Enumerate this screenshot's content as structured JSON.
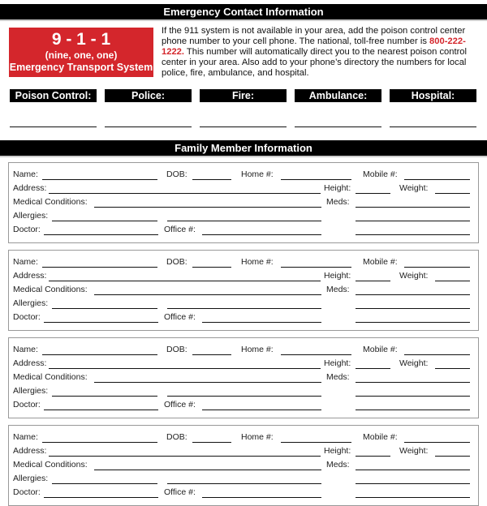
{
  "emergency_header": "Emergency Contact Information",
  "red_box": {
    "number": "9 - 1 - 1",
    "spelled": "(nine, one, one)",
    "system": "Emergency Transport System",
    "color": "#d4262c"
  },
  "intro": {
    "before_phone": "If the 911 system is not available in your area, add the poison control center phone number to your cell phone. The national, toll-free number is ",
    "phone": "800-222-1222.",
    "after_phone": " This number will automatically direct you to the nearest poison control center in your area. Also add to your phone’s directory the numbers for local police, fire, ambulance, and hospital."
  },
  "contacts": [
    {
      "label": "Poison Control:",
      "value": ""
    },
    {
      "label": "Police:",
      "value": ""
    },
    {
      "label": "Fire:",
      "value": ""
    },
    {
      "label": "Ambulance:",
      "value": ""
    },
    {
      "label": "Hospital:",
      "value": ""
    }
  ],
  "family_header": "Family Member Information",
  "field_labels": {
    "name": "Name:",
    "dob": "DOB:",
    "home": "Home #:",
    "mobile": "Mobile #:",
    "address": "Address:",
    "height": "Height:",
    "weight": "Weight:",
    "medical": "Medical Conditions:",
    "meds": "Meds:",
    "allergies": "Allergies:",
    "doctor": "Doctor:",
    "office": "Office #:"
  },
  "members": [
    {
      "name": "",
      "dob": "",
      "home": "",
      "mobile": "",
      "address": "",
      "height": "",
      "weight": "",
      "medical": "",
      "meds": "",
      "allergies": "",
      "doctor": "",
      "office": ""
    },
    {
      "name": "",
      "dob": "",
      "home": "",
      "mobile": "",
      "address": "",
      "height": "",
      "weight": "",
      "medical": "",
      "meds": "",
      "allergies": "",
      "doctor": "",
      "office": ""
    },
    {
      "name": "",
      "dob": "",
      "home": "",
      "mobile": "",
      "address": "",
      "height": "",
      "weight": "",
      "medical": "",
      "meds": "",
      "allergies": "",
      "doctor": "",
      "office": ""
    },
    {
      "name": "",
      "dob": "",
      "home": "",
      "mobile": "",
      "address": "",
      "height": "",
      "weight": "",
      "medical": "",
      "meds": "",
      "allergies": "",
      "doctor": "",
      "office": ""
    }
  ]
}
